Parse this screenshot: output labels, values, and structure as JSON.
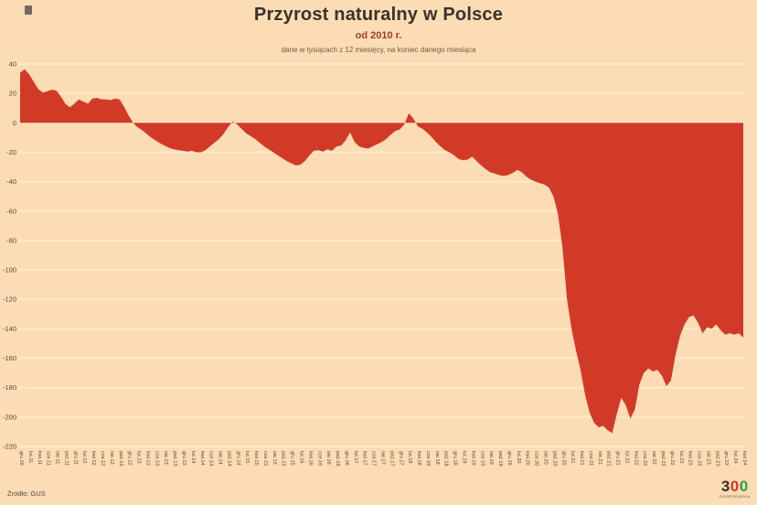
{
  "header": {
    "title": "Przyrost naturalny w Polsce",
    "subtitle": "od 2010 r.",
    "note": "dane w tysiącach z 12 miesięcy, na koniec danego miesiąca"
  },
  "footer": {
    "source": "Źródło: GUS",
    "logo": {
      "three": "3",
      "zero_red": "0",
      "zero_green": "0",
      "caption": "GOSPODARKA"
    }
  },
  "colors": {
    "background": "#fcdcb5",
    "area_fill": "#d23a28",
    "gridline": "#fdeacb",
    "axis_text": "#55483a",
    "title_text": "#38322c",
    "subtitle_text": "#9c3f22"
  },
  "chart_data": {
    "type": "area",
    "title": "Przyrost naturalny w Polsce",
    "subtitle": "od 2010 r.",
    "annotation": "dane w tysiącach z 12 miesięcy, na koniec danego miesiąca",
    "xlabel": "",
    "ylabel": "",
    "units": "tys.",
    "baseline": 0,
    "ylim": [
      -220,
      40
    ],
    "yticks": [
      40,
      20,
      0,
      -20,
      -40,
      -60,
      -80,
      -100,
      -120,
      -140,
      -160,
      -180,
      -200,
      -220
    ],
    "grid": true,
    "legend": false,
    "x_labels": [
      "gru.10",
      "lut.11",
      "kwi.11",
      "cze.11",
      "sie.11",
      "paź.11",
      "gru.11",
      "lut.12",
      "kwi.12",
      "cze.12",
      "sie.12",
      "paź.12",
      "gru.12",
      "lut.13",
      "kwi.13",
      "cze.13",
      "sie.13",
      "paź.13",
      "gru.13",
      "lut.14",
      "kwi.14",
      "cze.14",
      "sie.14",
      "paź.14",
      "gru.14",
      "lut.15",
      "kwi.15",
      "cze.15",
      "sie.15",
      "paź.15",
      "gru.15",
      "lut.16",
      "kwi.16",
      "cze.16",
      "sie.16",
      "paź.16",
      "gru.16",
      "lut.17",
      "kwi.17",
      "cze.17",
      "sie.17",
      "paź.17",
      "gru.17",
      "lut.18",
      "kwi.18",
      "cze.18",
      "sie.18",
      "paź.18",
      "gru.18",
      "lut.19",
      "kwi.19",
      "cze.19",
      "sie.19",
      "paź.19",
      "gru.19",
      "lut.20",
      "kwi.20",
      "cze.20",
      "sie.20",
      "paź.20",
      "gru.20",
      "lut.21",
      "kwi.21",
      "cze.21",
      "sie.21",
      "paź.21",
      "gru.21",
      "lut.22",
      "kwi.22",
      "cze.22",
      "sie.22",
      "paź.22",
      "gru.22",
      "lut.23",
      "kwi.23",
      "cze.23",
      "sie.23",
      "paź.23",
      "gru.23",
      "lut.24",
      "kwi.24"
    ],
    "x_label_every_n_points": 2,
    "series": [
      {
        "name": "przyrost naturalny (suma 12 miesięcy, tys.)",
        "values": [
          34,
          36.5,
          33,
          28,
          23,
          20.5,
          21.5,
          22.5,
          22,
          18,
          13,
          10.5,
          13,
          16,
          14.5,
          13,
          16.5,
          17,
          16,
          16,
          15.5,
          16.5,
          16,
          11,
          5,
          0,
          -3,
          -5,
          -7.5,
          -10,
          -12,
          -14,
          -15.5,
          -17,
          -18,
          -18.5,
          -19,
          -19.5,
          -19,
          -20,
          -20,
          -18.5,
          -16,
          -13.5,
          -11,
          -7.5,
          -3,
          1,
          -1,
          -4,
          -7,
          -9,
          -11,
          -13.5,
          -16,
          -18,
          -20,
          -22,
          -24,
          -26,
          -27.5,
          -29,
          -28.5,
          -26,
          -22,
          -19,
          -18.5,
          -19.5,
          -18,
          -19,
          -16,
          -15.5,
          -12,
          -6.5,
          -13,
          -16,
          -17,
          -17.5,
          -16,
          -14.5,
          -13,
          -11,
          -8,
          -5.5,
          -4.5,
          -1,
          6.5,
          3,
          -2.5,
          -4,
          -6.5,
          -9.5,
          -13,
          -16,
          -18.5,
          -20,
          -22,
          -24.5,
          -25.5,
          -25,
          -23,
          -26,
          -29,
          -31.5,
          -33.5,
          -34.5,
          -35.5,
          -36,
          -35.5,
          -34,
          -32,
          -33.5,
          -36.5,
          -38.5,
          -40,
          -41,
          -42,
          -44,
          -50,
          -62,
          -85,
          -120,
          -140,
          -155,
          -168,
          -185,
          -197,
          -204,
          -207,
          -206,
          -209,
          -211,
          -198,
          -187,
          -192,
          -201,
          -195,
          -178,
          -170,
          -167,
          -169,
          -168,
          -172,
          -179,
          -175,
          -158,
          -145,
          -137,
          -132,
          -131,
          -136,
          -143,
          -139,
          -140,
          -137,
          -141,
          -144,
          -143,
          -144,
          -143,
          -146
        ]
      }
    ]
  }
}
